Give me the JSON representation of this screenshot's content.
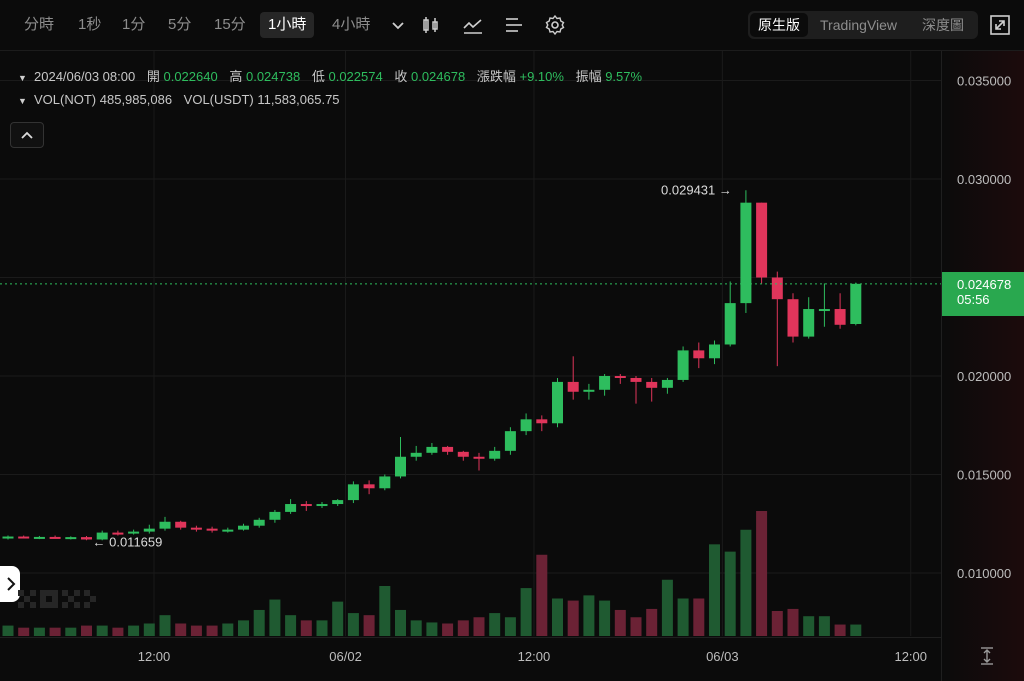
{
  "toolbar": {
    "timeframes": [
      "分時",
      "1秒",
      "1分",
      "5分",
      "15分",
      "1小時",
      "4小時"
    ],
    "active_timeframe": "1小時",
    "tools": [
      "candle-style-icon",
      "indicator-icon",
      "settings-list-icon",
      "gear-icon"
    ],
    "views": [
      "原生版",
      "TradingView",
      "深度圖"
    ],
    "active_view": "原生版"
  },
  "ohlc": {
    "date": "2024/06/03 08:00",
    "open_label": "開",
    "open": "0.022640",
    "high_label": "高",
    "high": "0.024738",
    "low_label": "低",
    "low": "0.022574",
    "close_label": "收",
    "close": "0.024678",
    "change_label": "漲跌幅",
    "change": "+9.10%",
    "amplitude_label": "振幅",
    "amplitude": "9.57%"
  },
  "volume": {
    "base_label": "VOL(NOT)",
    "base": "485,985,086",
    "quote_label": "VOL(USDT)",
    "quote": "11,583,065.75"
  },
  "last_price": {
    "price": "0.024678",
    "countdown": "05:56"
  },
  "colors": {
    "up": "#2ebd5e",
    "down": "#e0355b",
    "background": "#0b0b0b"
  },
  "chart_data": {
    "type": "candlestick",
    "title": "",
    "y_ticks": [
      "0.035000",
      "0.030000",
      "0.025000",
      "0.020000",
      "0.015000",
      "0.010000"
    ],
    "y_tick_values": [
      0.035,
      0.03,
      0.025,
      0.02,
      0.015,
      0.01
    ],
    "x_ticks": [
      "12:00",
      "06/02",
      "12:00",
      "06/03",
      "12:00"
    ],
    "x_tick_index": [
      9.3,
      21.5,
      33.5,
      45.5,
      57.5
    ],
    "ylim": [
      0.0068,
      0.0365
    ],
    "max_label": "0.029431",
    "min_label": "0.011659",
    "candles": [
      [
        0.0118,
        0.0119,
        0.0117,
        0.01185
      ],
      [
        0.01185,
        0.0119,
        0.01175,
        0.0118
      ],
      [
        0.0118,
        0.01188,
        0.01172,
        0.01183
      ],
      [
        0.01183,
        0.0119,
        0.01176,
        0.01178
      ],
      [
        0.01178,
        0.01186,
        0.0117,
        0.01182
      ],
      [
        0.01182,
        0.01188,
        0.01166,
        0.0117
      ],
      [
        0.0117,
        0.01215,
        0.01166,
        0.01205
      ],
      [
        0.01205,
        0.01215,
        0.0119,
        0.012
      ],
      [
        0.012,
        0.0122,
        0.01195,
        0.0121
      ],
      [
        0.0121,
        0.01245,
        0.012,
        0.01225
      ],
      [
        0.01225,
        0.01285,
        0.01215,
        0.0126
      ],
      [
        0.0126,
        0.01265,
        0.0122,
        0.0123
      ],
      [
        0.0123,
        0.0124,
        0.0121,
        0.01225
      ],
      [
        0.01225,
        0.01235,
        0.01205,
        0.01215
      ],
      [
        0.01215,
        0.0123,
        0.01205,
        0.0122
      ],
      [
        0.0122,
        0.0125,
        0.01215,
        0.0124
      ],
      [
        0.0124,
        0.0128,
        0.0123,
        0.0127
      ],
      [
        0.0127,
        0.0132,
        0.01255,
        0.0131
      ],
      [
        0.0131,
        0.01375,
        0.013,
        0.0135
      ],
      [
        0.0135,
        0.01365,
        0.01315,
        0.0134
      ],
      [
        0.0134,
        0.0136,
        0.0133,
        0.0135
      ],
      [
        0.0135,
        0.01375,
        0.0134,
        0.0137
      ],
      [
        0.0137,
        0.01465,
        0.01355,
        0.0145
      ],
      [
        0.0145,
        0.0147,
        0.014,
        0.0143
      ],
      [
        0.0143,
        0.015,
        0.0142,
        0.0149
      ],
      [
        0.0149,
        0.0169,
        0.0148,
        0.0159
      ],
      [
        0.0159,
        0.01645,
        0.0157,
        0.0161
      ],
      [
        0.0161,
        0.0166,
        0.016,
        0.0164
      ],
      [
        0.0164,
        0.01645,
        0.016,
        0.01615
      ],
      [
        0.01615,
        0.0162,
        0.0157,
        0.0159
      ],
      [
        0.0159,
        0.0161,
        0.0152,
        0.0158
      ],
      [
        0.0158,
        0.0164,
        0.0157,
        0.0162
      ],
      [
        0.0162,
        0.0174,
        0.016,
        0.0172
      ],
      [
        0.0172,
        0.0181,
        0.017,
        0.0178
      ],
      [
        0.0178,
        0.018,
        0.0172,
        0.0176
      ],
      [
        0.0176,
        0.0199,
        0.0174,
        0.0197
      ],
      [
        0.0197,
        0.021,
        0.0188,
        0.0192
      ],
      [
        0.0192,
        0.0196,
        0.0188,
        0.0193
      ],
      [
        0.0193,
        0.0201,
        0.019,
        0.02
      ],
      [
        0.02,
        0.0201,
        0.0196,
        0.0199
      ],
      [
        0.0199,
        0.02,
        0.0186,
        0.0197
      ],
      [
        0.0197,
        0.0199,
        0.0187,
        0.0194
      ],
      [
        0.0194,
        0.0199,
        0.0191,
        0.0198
      ],
      [
        0.0198,
        0.0215,
        0.0197,
        0.0213
      ],
      [
        0.0213,
        0.0217,
        0.0204,
        0.0209
      ],
      [
        0.0209,
        0.0218,
        0.0206,
        0.0216
      ],
      [
        0.0216,
        0.0248,
        0.0215,
        0.0237
      ],
      [
        0.0237,
        0.02943,
        0.0232,
        0.0288
      ],
      [
        0.0288,
        0.0288,
        0.0247,
        0.025
      ],
      [
        0.025,
        0.0253,
        0.0205,
        0.0239
      ],
      [
        0.0239,
        0.0242,
        0.0217,
        0.022
      ],
      [
        0.022,
        0.024,
        0.0219,
        0.0234
      ],
      [
        0.0234,
        0.0247,
        0.0225,
        0.0234
      ],
      [
        0.0234,
        0.0242,
        0.0224,
        0.0226
      ],
      [
        0.02264,
        0.02474,
        0.02257,
        0.02468
      ]
    ],
    "volumes": [
      1,
      0.8,
      0.8,
      0.8,
      0.8,
      1,
      1,
      0.8,
      1,
      1.2,
      2,
      1.2,
      1,
      1,
      1.2,
      1.5,
      2.5,
      3.5,
      2,
      1.5,
      1.5,
      3.3,
      2.2,
      2,
      4.8,
      2.5,
      1.5,
      1.3,
      1.2,
      1.5,
      1.8,
      2.2,
      1.8,
      4.6,
      7.8,
      3.6,
      3.4,
      3.9,
      3.4,
      2.5,
      1.8,
      2.6,
      5.4,
      3.6,
      3.6,
      8.8,
      8.1,
      10.2,
      12.0,
      2.4,
      2.6,
      1.9,
      1.9,
      1.1,
      1.1
    ]
  }
}
